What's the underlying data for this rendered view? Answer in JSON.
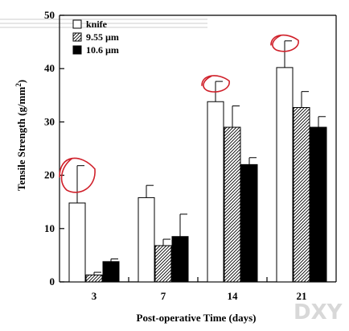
{
  "chart_data": {
    "type": "bar",
    "title": "",
    "xlabel": "Post-operative Time (days)",
    "ylabel_main": "Tensile Strength (g/mm",
    "ylabel_sup": "2",
    "ylabel_close": ")",
    "categories": [
      "3",
      "7",
      "14",
      "21"
    ],
    "ylim": [
      0,
      50
    ],
    "yticks": [
      0,
      10,
      20,
      30,
      40,
      50
    ],
    "grid": false,
    "legend_position": "top-left",
    "series": [
      {
        "name": "knife",
        "pattern": "open",
        "values": [
          14.8,
          15.8,
          33.8,
          40.2
        ],
        "errors": [
          7.0,
          2.3,
          3.8,
          5.0
        ]
      },
      {
        "name": "9.55 µm",
        "pattern": "hatched",
        "values": [
          1.3,
          6.8,
          29.0,
          32.7
        ],
        "errors": [
          0.5,
          1.2,
          4.0,
          3.0
        ]
      },
      {
        "name": "10.6 µm",
        "pattern": "solid",
        "values": [
          3.8,
          8.5,
          22.0,
          29.0
        ],
        "errors": [
          0.5,
          4.2,
          1.3,
          2.0
        ]
      }
    ],
    "annotations": [
      {
        "type": "hand-drawn-circle",
        "color": "#d0202a",
        "category": "3",
        "series": "knife"
      },
      {
        "type": "hand-drawn-circle",
        "color": "#d0202a",
        "category": "14",
        "series": "knife"
      },
      {
        "type": "hand-drawn-circle",
        "color": "#d0202a",
        "category": "21",
        "series": "knife"
      }
    ]
  },
  "watermark": "DXY",
  "colors": {
    "bar_outline": "#000000",
    "open_fill": "#ffffff",
    "solid_fill": "#000000",
    "annotation": "#d0202a",
    "watermark": "#d8d8d8"
  }
}
